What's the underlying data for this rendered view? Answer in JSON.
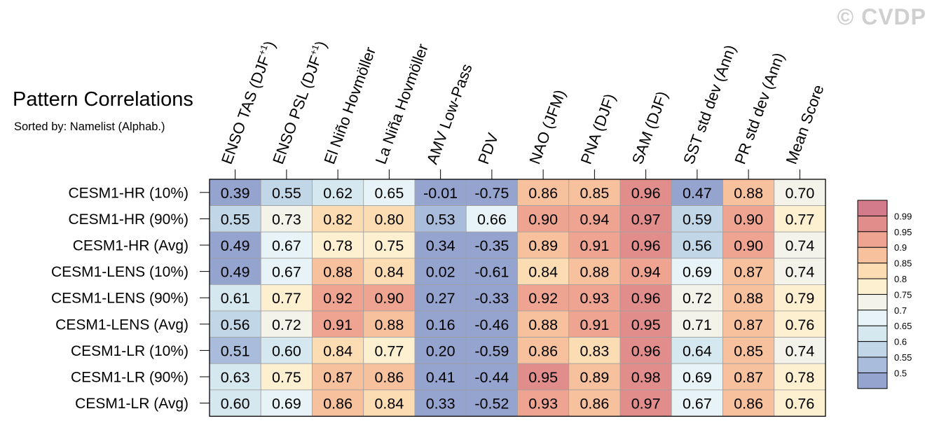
{
  "watermark": "© CVDP",
  "title": "Pattern Correlations",
  "subtitle": "Sorted by: Namelist (Alphab.)",
  "chart_data": {
    "type": "heatmap",
    "columns": [
      "ENSO TAS (DJF+1)",
      "ENSO PSL (DJF+1)",
      "El Niño Hovmöller",
      "La Niña Hovmöller",
      "AMV Low-Pass",
      "PDV",
      "NAO (JFM)",
      "PNA (DJF)",
      "SAM (DJF)",
      "SST std dev (Ann)",
      "PR std dev (Ann)",
      "Mean Score"
    ],
    "rows": [
      "CESM1-HR (10%)",
      "CESM1-HR (90%)",
      "CESM1-HR (Avg)",
      "CESM1-LENS (10%)",
      "CESM1-LENS (90%)",
      "CESM1-LENS (Avg)",
      "CESM1-LR (10%)",
      "CESM1-LR (90%)",
      "CESM1-LR (Avg)"
    ],
    "values": [
      [
        "0.39",
        "0.55",
        "0.62",
        "0.65",
        "-0.01",
        "-0.75",
        "0.86",
        "0.85",
        "0.96",
        "0.47",
        "0.88",
        "0.70"
      ],
      [
        "0.55",
        "0.73",
        "0.82",
        "0.80",
        "0.53",
        "0.66",
        "0.90",
        "0.94",
        "0.97",
        "0.59",
        "0.90",
        "0.77"
      ],
      [
        "0.49",
        "0.67",
        "0.78",
        "0.75",
        "0.34",
        "-0.35",
        "0.89",
        "0.91",
        "0.96",
        "0.56",
        "0.90",
        "0.74"
      ],
      [
        "0.49",
        "0.67",
        "0.88",
        "0.84",
        "0.02",
        "-0.61",
        "0.84",
        "0.88",
        "0.94",
        "0.69",
        "0.87",
        "0.74"
      ],
      [
        "0.61",
        "0.77",
        "0.92",
        "0.90",
        "0.27",
        "-0.33",
        "0.92",
        "0.93",
        "0.96",
        "0.72",
        "0.88",
        "0.79"
      ],
      [
        "0.56",
        "0.72",
        "0.91",
        "0.88",
        "0.16",
        "-0.46",
        "0.88",
        "0.91",
        "0.95",
        "0.71",
        "0.87",
        "0.76"
      ],
      [
        "0.51",
        "0.60",
        "0.84",
        "0.77",
        "0.20",
        "-0.59",
        "0.86",
        "0.83",
        "0.96",
        "0.64",
        "0.85",
        "0.74"
      ],
      [
        "0.63",
        "0.75",
        "0.87",
        "0.86",
        "0.41",
        "-0.44",
        "0.95",
        "0.89",
        "0.98",
        "0.69",
        "0.87",
        "0.78"
      ],
      [
        "0.60",
        "0.69",
        "0.86",
        "0.84",
        "0.33",
        "-0.52",
        "0.93",
        "0.86",
        "0.97",
        "0.67",
        "0.86",
        "0.76"
      ]
    ],
    "colorbar": {
      "labels": [
        "0.99",
        "0.95",
        "0.9",
        "0.85",
        "0.8",
        "0.75",
        "0.7",
        "0.65",
        "0.6",
        "0.55",
        "0.5"
      ],
      "thresholds": [
        0.5,
        0.55,
        0.6,
        0.65,
        0.7,
        0.75,
        0.8,
        0.85,
        0.9,
        0.95,
        0.99
      ],
      "colors": [
        "#95a3cf",
        "#a9bcdb",
        "#c1d6e6",
        "#d5e8ef",
        "#e7f3f6",
        "#f4f3e9",
        "#fdf0d0",
        "#fcdcb3",
        "#f8c19e",
        "#eea491",
        "#e08d8b",
        "#d37b8a"
      ]
    }
  }
}
